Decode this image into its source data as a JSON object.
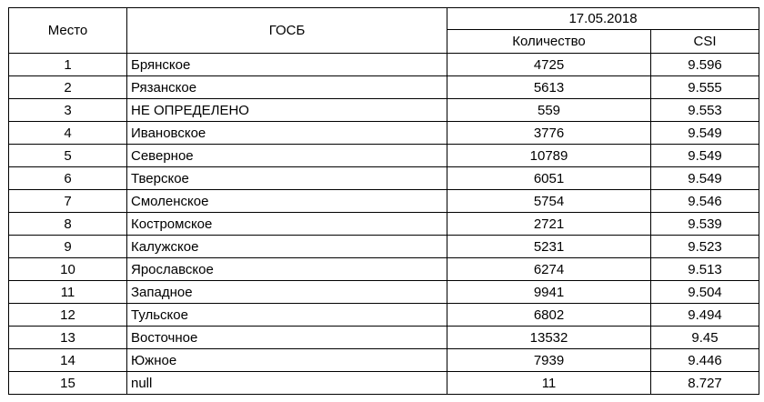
{
  "table": {
    "headers": {
      "place": "Место",
      "gosb": "ГОСБ",
      "date": "17.05.2018",
      "count": "Количество",
      "csi": "CSI"
    },
    "rows": [
      {
        "place": "1",
        "gosb": "Брянское",
        "count": "4725",
        "csi": "9.596"
      },
      {
        "place": "2",
        "gosb": "Рязанское",
        "count": "5613",
        "csi": "9.555"
      },
      {
        "place": "3",
        "gosb": "НЕ ОПРЕДЕЛЕНО",
        "count": "559",
        "csi": "9.553"
      },
      {
        "place": "4",
        "gosb": "Ивановское",
        "count": "3776",
        "csi": "9.549"
      },
      {
        "place": "5",
        "gosb": "Северное",
        "count": "10789",
        "csi": "9.549"
      },
      {
        "place": "6",
        "gosb": "Тверское",
        "count": "6051",
        "csi": "9.549"
      },
      {
        "place": "7",
        "gosb": "Смоленское",
        "count": "5754",
        "csi": "9.546"
      },
      {
        "place": "8",
        "gosb": "Костромское",
        "count": "2721",
        "csi": "9.539"
      },
      {
        "place": "9",
        "gosb": "Калужское",
        "count": "5231",
        "csi": "9.523"
      },
      {
        "place": "10",
        "gosb": "Ярославское",
        "count": "6274",
        "csi": "9.513"
      },
      {
        "place": "11",
        "gosb": "Западное",
        "count": "9941",
        "csi": "9.504"
      },
      {
        "place": "12",
        "gosb": "Тульское",
        "count": "6802",
        "csi": "9.494"
      },
      {
        "place": "13",
        "gosb": "Восточное",
        "count": "13532",
        "csi": "9.45"
      },
      {
        "place": "14",
        "gosb": "Южное",
        "count": "7939",
        "csi": "9.446"
      },
      {
        "place": "15",
        "gosb": "null",
        "count": "11",
        "csi": "8.727"
      }
    ]
  }
}
